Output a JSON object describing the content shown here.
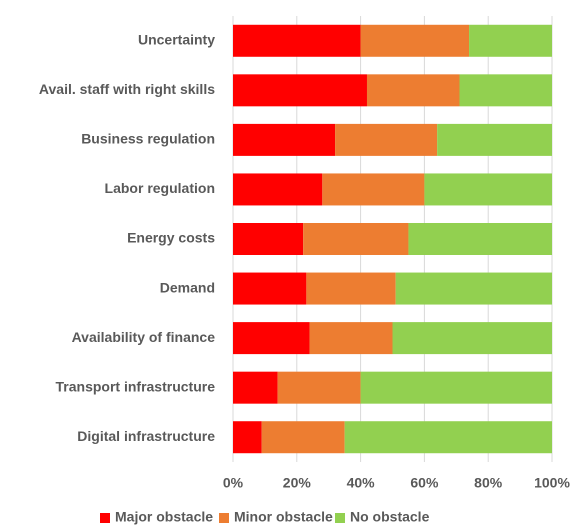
{
  "chart_data": {
    "type": "stacked_barh",
    "categories": [
      "Uncertainty",
      "Avail. staff with right skills",
      "Business regulation",
      "Labor regulation",
      "Energy costs",
      "Demand",
      "Availability of finance",
      "Transport infrastructure",
      "Digital infrastructure"
    ],
    "series": [
      {
        "name": "Major obstacle",
        "color": "#ff0000",
        "values": [
          40,
          42,
          32,
          28,
          22,
          23,
          24,
          14,
          9
        ]
      },
      {
        "name": "Minor obstacle",
        "color": "#ed7d31",
        "values": [
          34,
          29,
          32,
          32,
          33,
          28,
          26,
          26,
          26
        ]
      },
      {
        "name": "No obstacle",
        "color": "#92d050",
        "values": [
          26,
          29,
          36,
          40,
          45,
          49,
          50,
          60,
          65
        ]
      }
    ],
    "xlim": [
      0,
      100
    ],
    "xticks": [
      {
        "value": 0,
        "label": "0%"
      },
      {
        "value": 20,
        "label": "20%"
      },
      {
        "value": 40,
        "label": "40%"
      },
      {
        "value": 60,
        "label": "60%"
      },
      {
        "value": 80,
        "label": "80%"
      },
      {
        "value": 100,
        "label": "100%"
      }
    ],
    "grid": true,
    "legend": "bottom"
  }
}
